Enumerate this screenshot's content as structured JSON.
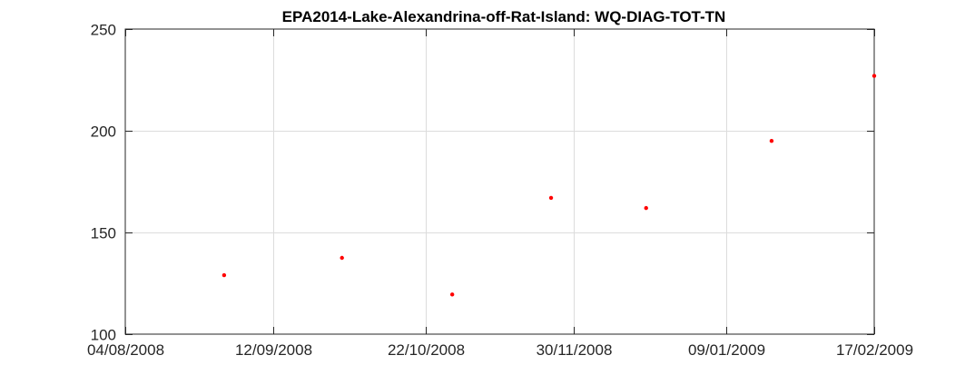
{
  "chart_data": {
    "type": "scatter",
    "title": "EPA2014-Lake-Alexandrina-off-Rat-Island: WQ-DIAG-TOT-TN",
    "xlabel": "",
    "ylabel": "",
    "x_ticks": [
      "04/08/2008",
      "12/09/2008",
      "22/10/2008",
      "30/11/2008",
      "09/01/2009",
      "17/02/2009"
    ],
    "xlim": [
      "2008-08-04",
      "2009-02-17"
    ],
    "ylim": [
      100,
      250
    ],
    "y_ticks": [
      100,
      150,
      200,
      250
    ],
    "grid": true,
    "marker_color": "#ff0000",
    "series": [
      {
        "points": [
          {
            "x": "2008-08-30",
            "y": 129
          },
          {
            "x": "2008-09-30",
            "y": 137.5
          },
          {
            "x": "2008-10-29",
            "y": 119.5
          },
          {
            "x": "2008-11-24",
            "y": 167
          },
          {
            "x": "2008-12-19",
            "y": 162
          },
          {
            "x": "2009-01-21",
            "y": 195
          },
          {
            "x": "2009-02-17",
            "y": 227
          }
        ]
      }
    ]
  }
}
